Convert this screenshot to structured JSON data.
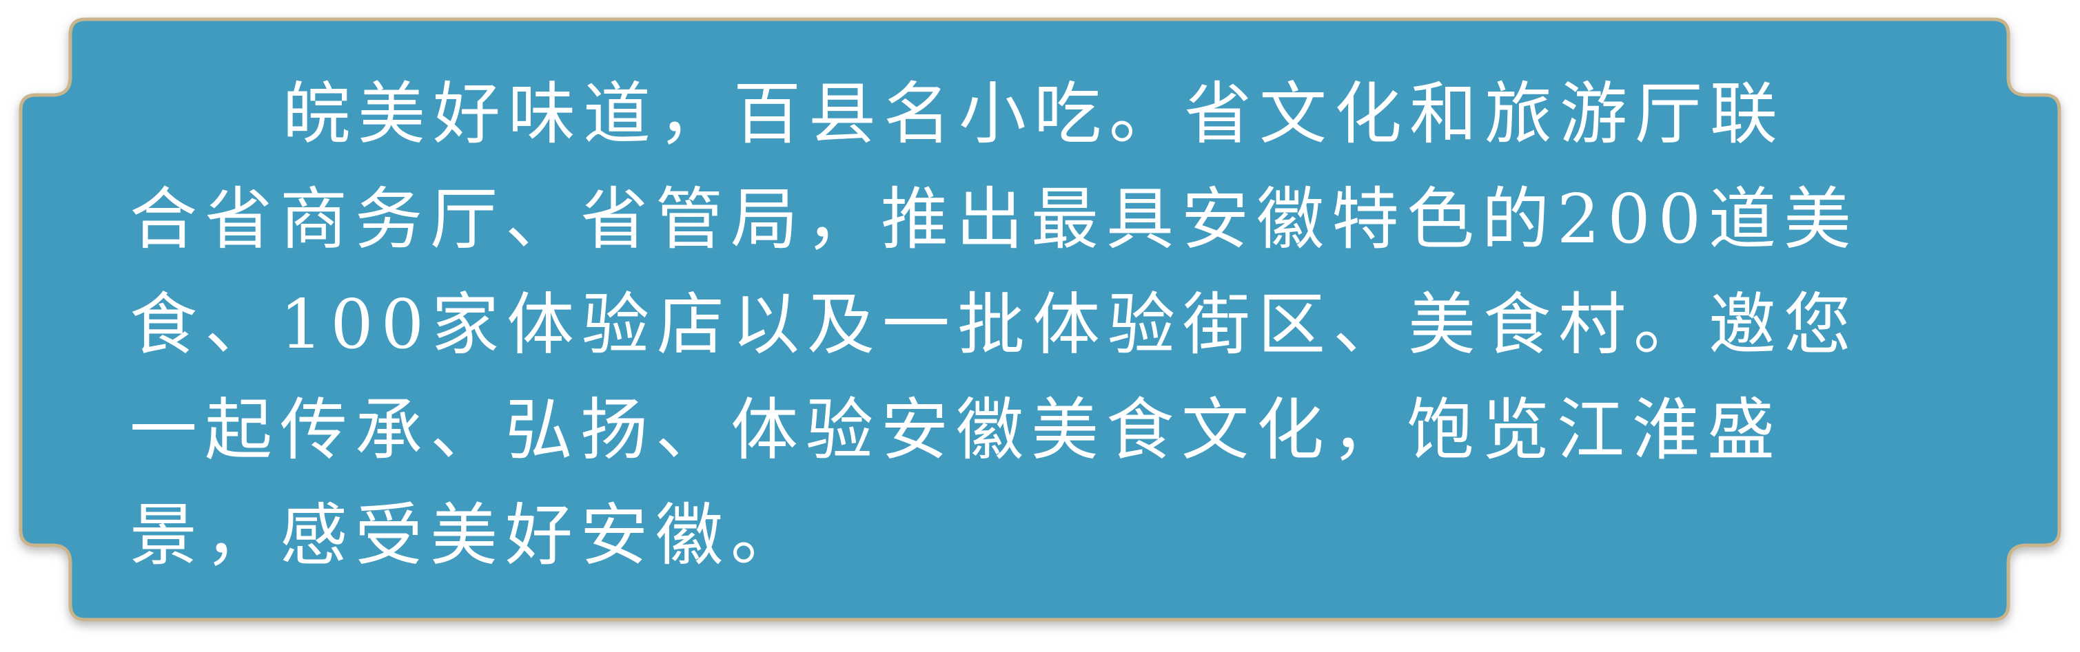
{
  "panel": {
    "background_color": "#3f9bbf",
    "border_color": "#c9b48c",
    "text_color": "#ffffff",
    "lines": [
      "皖美好味道，百县名小吃。省文化和旅游厅联",
      "合省商务厅、省管局，推出最具安徽特色的200道美",
      "食、100家体验店以及一批体验街区、美食村。邀您",
      "一起传承、弘扬、体验安徽美食文化，饱览江淮盛",
      "景，感受美好安徽。"
    ]
  }
}
